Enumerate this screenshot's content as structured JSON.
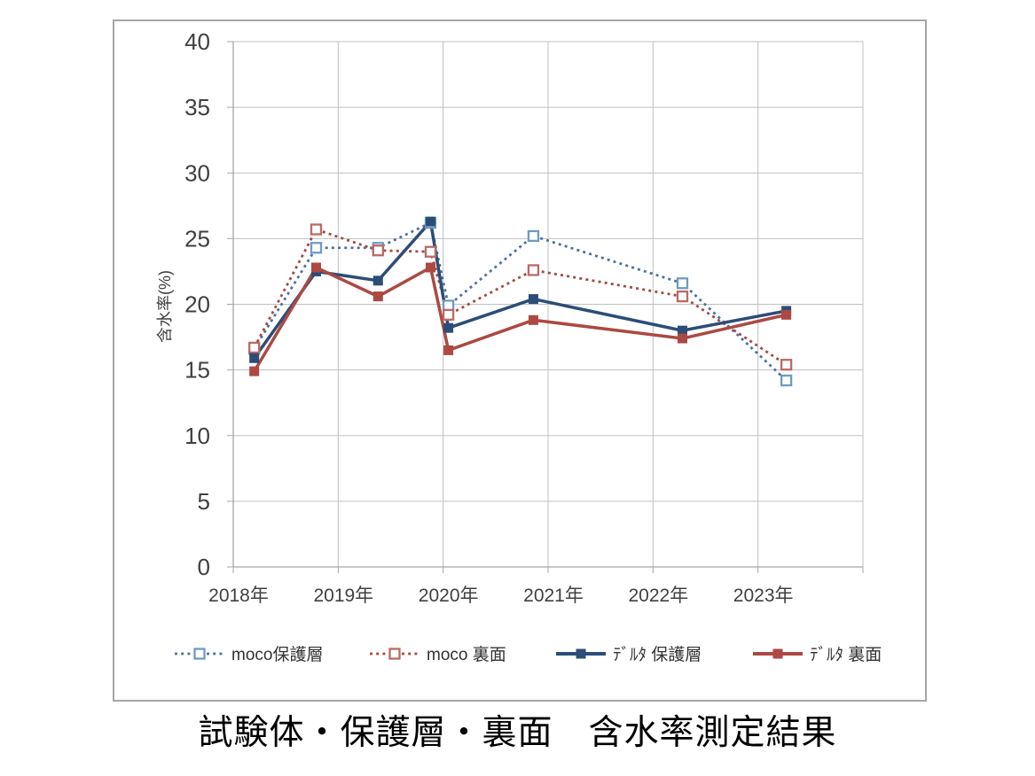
{
  "figure": {
    "caption": "試験体・保護層・裏面　含水率測定結果"
  },
  "chart_data": {
    "type": "line",
    "title": "試験体・保護層・裏面　含水率測定結果",
    "xlabel": "",
    "ylabel": "含水率(%)",
    "ylim": [
      0,
      40
    ],
    "yticks": [
      0,
      5,
      10,
      15,
      20,
      25,
      30,
      35,
      40
    ],
    "xlim": [
      2018,
      2024
    ],
    "x_gridline_years": [
      2018,
      2019,
      2020,
      2021,
      2022,
      2023,
      2024
    ],
    "xtick_labels": [
      "2018年",
      "2019年",
      "2020年",
      "2021年",
      "2022年",
      "2023年"
    ],
    "grid": true,
    "legend_position": "bottom",
    "text_color": "#404040",
    "grid_color": "#c0c0c0",
    "axis_color": "#a6a6a6",
    "x": [
      2018.2,
      2018.79,
      2019.38,
      2019.88,
      2020.05,
      2020.86,
      2022.28,
      2023.27
    ],
    "series": [
      {
        "name": "moco保護層",
        "style": "dotted",
        "marker": "open-square",
        "color": "#50729b",
        "marker_color": "#6d9bc3",
        "values": [
          16.6,
          24.3,
          24.3,
          26.2,
          19.9,
          25.2,
          21.6,
          14.2
        ]
      },
      {
        "name": "moco 裏面",
        "style": "dotted",
        "marker": "open-square",
        "color": "#a34a45",
        "marker_color": "#bb6a64",
        "values": [
          16.7,
          25.7,
          24.1,
          24.0,
          19.2,
          22.6,
          20.6,
          15.4
        ]
      },
      {
        "name": "ﾃﾞﾙﾀ 保護層",
        "style": "solid",
        "marker": "filled-square",
        "color": "#2c4d77",
        "marker_color": "#2c4d77",
        "values": [
          15.9,
          22.5,
          21.8,
          26.3,
          18.2,
          20.4,
          18.0,
          19.5
        ]
      },
      {
        "name": "ﾃﾞﾙﾀ 裏面",
        "style": "solid",
        "marker": "filled-square",
        "color": "#ac4942",
        "marker_color": "#ac4942",
        "values": [
          14.9,
          22.8,
          20.6,
          22.8,
          16.5,
          18.8,
          17.4,
          19.2
        ]
      }
    ]
  }
}
